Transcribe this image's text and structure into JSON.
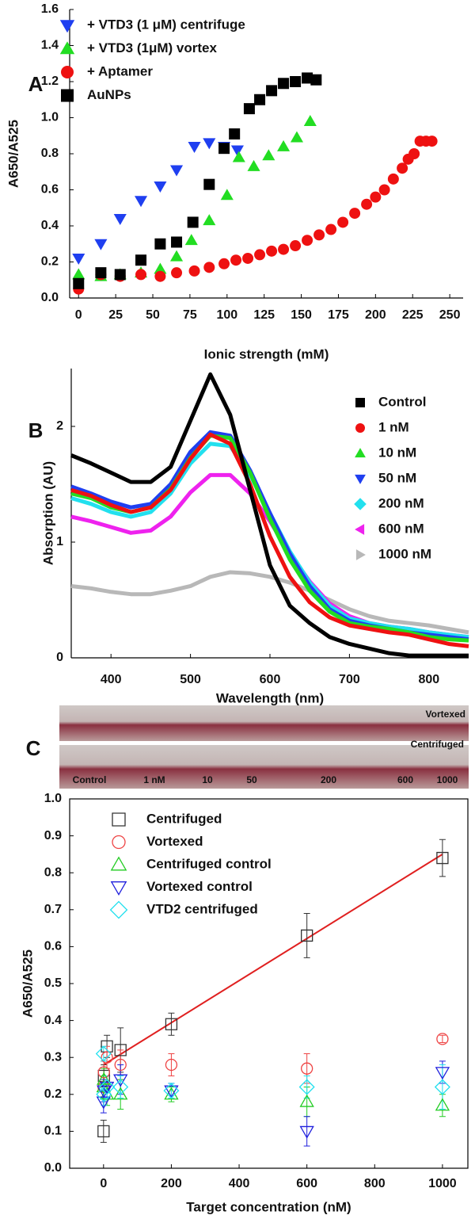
{
  "chart_data": [
    {
      "type": "scatter",
      "panel_label": "A",
      "xlabel": "Ionic strength (mM)",
      "ylabel": "A650/A525",
      "xlim": [
        -6,
        259
      ],
      "ylim": [
        0,
        1.6
      ],
      "xticks": [
        0,
        25,
        50,
        75,
        100,
        125,
        150,
        175,
        200,
        225,
        250
      ],
      "yticks": [
        {
          "value": 0,
          "label": "0.0"
        },
        0.2,
        0.4,
        0.6,
        0.8,
        {
          "value": 1,
          "label": "1.0"
        },
        1.2,
        1.4,
        1.6
      ],
      "filled": true,
      "grid": false,
      "series": [
        {
          "name": "+ VTD3 (1 μM) centrifuge",
          "color": "#1f3ff0",
          "marker": "triangle-down",
          "x": [
            0,
            15,
            28,
            42,
            55,
            66,
            78,
            88,
            98,
            107
          ],
          "values": [
            0.22,
            0.3,
            0.44,
            0.54,
            0.62,
            0.71,
            0.84,
            0.86,
            0.84,
            0.82
          ]
        },
        {
          "name": "+ VTD3 (1μM) vortex",
          "color": "#22dd22",
          "marker": "triangle-up",
          "x": [
            0,
            15,
            28,
            42,
            55,
            66,
            76,
            88,
            100,
            108,
            118,
            128,
            138,
            147,
            156
          ],
          "values": [
            0.13,
            0.12,
            0.13,
            0.14,
            0.16,
            0.23,
            0.32,
            0.43,
            0.57,
            0.78,
            0.73,
            0.79,
            0.84,
            0.89,
            0.98
          ]
        },
        {
          "name": "+ Aptamer",
          "color": "#ee1111",
          "marker": "circle",
          "x": [
            0,
            15,
            28,
            42,
            55,
            66,
            78,
            88,
            98,
            106,
            114,
            122,
            130,
            138,
            146,
            154,
            162,
            170,
            178,
            186,
            194,
            200,
            206,
            212,
            218,
            222,
            226,
            230,
            234,
            238
          ],
          "values": [
            0.05,
            0.13,
            0.12,
            0.13,
            0.12,
            0.14,
            0.15,
            0.17,
            0.19,
            0.21,
            0.22,
            0.24,
            0.26,
            0.27,
            0.29,
            0.32,
            0.35,
            0.38,
            0.42,
            0.47,
            0.52,
            0.56,
            0.6,
            0.66,
            0.72,
            0.77,
            0.8,
            0.87,
            0.87,
            0.87
          ]
        },
        {
          "name": "AuNPs",
          "color": "#000000",
          "marker": "square",
          "x": [
            0,
            15,
            28,
            42,
            55,
            66,
            77,
            88,
            98,
            105,
            115,
            122,
            130,
            138,
            146,
            154,
            160
          ],
          "values": [
            0.08,
            0.14,
            0.13,
            0.21,
            0.3,
            0.31,
            0.42,
            0.63,
            0.83,
            0.91,
            1.05,
            1.1,
            1.15,
            1.19,
            1.2,
            1.22,
            1.21
          ]
        }
      ]
    },
    {
      "type": "line",
      "panel_label": "B",
      "xlabel": "Wavelength (nm)",
      "ylabel": "Absorption (AU)",
      "xlim": [
        350,
        850
      ],
      "ylim": [
        0,
        2.5
      ],
      "xticks": [
        400,
        500,
        600,
        700,
        800
      ],
      "yticks": [
        0,
        1,
        2
      ],
      "grid": false,
      "x": [
        350,
        375,
        400,
        425,
        450,
        475,
        500,
        525,
        550,
        575,
        600,
        625,
        650,
        675,
        700,
        725,
        750,
        775,
        800,
        825,
        850
      ],
      "series": [
        {
          "name": "Control",
          "color": "#000000",
          "marker": "square",
          "values": [
            1.75,
            1.68,
            1.6,
            1.52,
            1.52,
            1.65,
            2.05,
            2.45,
            2.1,
            1.45,
            0.8,
            0.45,
            0.3,
            0.18,
            0.12,
            0.08,
            0.04,
            0.02,
            0.02,
            0.02,
            0.02
          ]
        },
        {
          "name": "1 nM",
          "color": "#ee1111",
          "marker": "circle",
          "values": [
            1.45,
            1.4,
            1.32,
            1.26,
            1.3,
            1.45,
            1.72,
            1.93,
            1.85,
            1.5,
            1.05,
            0.7,
            0.48,
            0.35,
            0.28,
            0.25,
            0.22,
            0.2,
            0.16,
            0.12,
            0.1
          ]
        },
        {
          "name": "10 nM",
          "color": "#22dd22",
          "marker": "triangle-up",
          "values": [
            1.42,
            1.38,
            1.3,
            1.26,
            1.3,
            1.46,
            1.73,
            1.92,
            1.9,
            1.6,
            1.2,
            0.85,
            0.58,
            0.4,
            0.3,
            0.27,
            0.25,
            0.22,
            0.18,
            0.16,
            0.15
          ]
        },
        {
          "name": "50 nM",
          "color": "#1f3ff0",
          "marker": "triangle-down",
          "values": [
            1.48,
            1.42,
            1.35,
            1.3,
            1.33,
            1.5,
            1.78,
            1.95,
            1.92,
            1.62,
            1.25,
            0.9,
            0.62,
            0.42,
            0.32,
            0.28,
            0.25,
            0.22,
            0.2,
            0.18,
            0.16
          ]
        },
        {
          "name": "200 nM",
          "color": "#22e0ee",
          "marker": "diamond",
          "values": [
            1.38,
            1.33,
            1.26,
            1.22,
            1.26,
            1.42,
            1.68,
            1.85,
            1.83,
            1.58,
            1.25,
            0.92,
            0.65,
            0.45,
            0.34,
            0.3,
            0.27,
            0.25,
            0.22,
            0.2,
            0.18
          ]
        },
        {
          "name": "600 nM",
          "color": "#ee22ee",
          "marker": "triangle-left",
          "values": [
            1.22,
            1.18,
            1.13,
            1.08,
            1.1,
            1.22,
            1.43,
            1.58,
            1.58,
            1.42,
            1.18,
            0.9,
            0.66,
            0.47,
            0.36,
            0.3,
            0.27,
            0.25,
            0.22,
            0.2,
            0.18
          ]
        },
        {
          "name": "1000 nM",
          "color": "#b8b8b8",
          "marker": "triangle-right",
          "values": [
            0.62,
            0.6,
            0.57,
            0.55,
            0.55,
            0.58,
            0.62,
            0.7,
            0.74,
            0.73,
            0.7,
            0.65,
            0.58,
            0.5,
            0.42,
            0.36,
            0.32,
            0.3,
            0.28,
            0.25,
            0.22
          ]
        }
      ]
    },
    {
      "type": "scatter",
      "xlabel": "Target concentration (nM)",
      "ylabel": "A650/A525",
      "xlim": [
        -100,
        1075
      ],
      "ylim": [
        0,
        1
      ],
      "xticks": [
        0,
        200,
        400,
        600,
        800,
        1000
      ],
      "yticks": [
        {
          "value": 0,
          "label": "0.0"
        },
        0.1,
        0.2,
        0.3,
        0.4,
        0.5,
        0.6,
        0.7,
        0.8,
        0.9,
        {
          "value": 1,
          "label": "1.0"
        }
      ],
      "filled": false,
      "grid": false,
      "x": [
        0,
        1,
        10,
        50,
        200,
        600,
        1000
      ],
      "series": [
        {
          "name": "Centrifuged",
          "color": "#333333",
          "marker": "square",
          "values": [
            0.1,
            0.25,
            0.33,
            0.32,
            0.39,
            0.63,
            0.84
          ],
          "errors": [
            0.03,
            0.03,
            0.03,
            0.06,
            0.03,
            0.06,
            0.05
          ]
        },
        {
          "name": "Vortexed",
          "color": "#ee4444",
          "marker": "circle",
          "values": [
            0.22,
            0.26,
            0.3,
            0.28,
            0.28,
            0.27,
            0.35
          ],
          "errors": [
            0.03,
            0.03,
            0.03,
            0.04,
            0.03,
            0.04,
            0.01
          ]
        },
        {
          "name": "Centrifuged control",
          "color": "#22cc22",
          "marker": "triangle-up",
          "values": [
            0.22,
            0.24,
            0.2,
            0.2,
            0.2,
            0.18,
            0.17
          ],
          "errors": [
            0.03,
            0.03,
            0.03,
            0.04,
            0.02,
            0.04,
            0.03
          ]
        },
        {
          "name": "Vortexed control",
          "color": "#1f1fdd",
          "marker": "triangle-down",
          "values": [
            0.18,
            0.21,
            0.22,
            0.24,
            0.21,
            0.1,
            0.26
          ],
          "errors": [
            0.03,
            0.03,
            0.03,
            0.04,
            0.02,
            0.04,
            0.03
          ]
        },
        {
          "name": "VTD2 centrifuged",
          "color": "#22e0ee",
          "marker": "diamond",
          "values": [
            0.31,
            0.2,
            0.22,
            0.22,
            0.21,
            0.22,
            0.22
          ],
          "errors": [
            0.02,
            0.03,
            0.03,
            0.03,
            0.02,
            0.03,
            0.06
          ]
        }
      ],
      "fit_line": {
        "color": "#e02020",
        "x": [
          0,
          1000
        ],
        "values": [
          0.28,
          0.85
        ]
      }
    }
  ],
  "photo": {
    "panel_label": "C",
    "labels": [
      "Vortexed",
      "Centrifuged"
    ],
    "tube_labels": [
      "Control",
      "1 nM",
      "10",
      "50",
      "200",
      "600",
      "1000"
    ]
  }
}
